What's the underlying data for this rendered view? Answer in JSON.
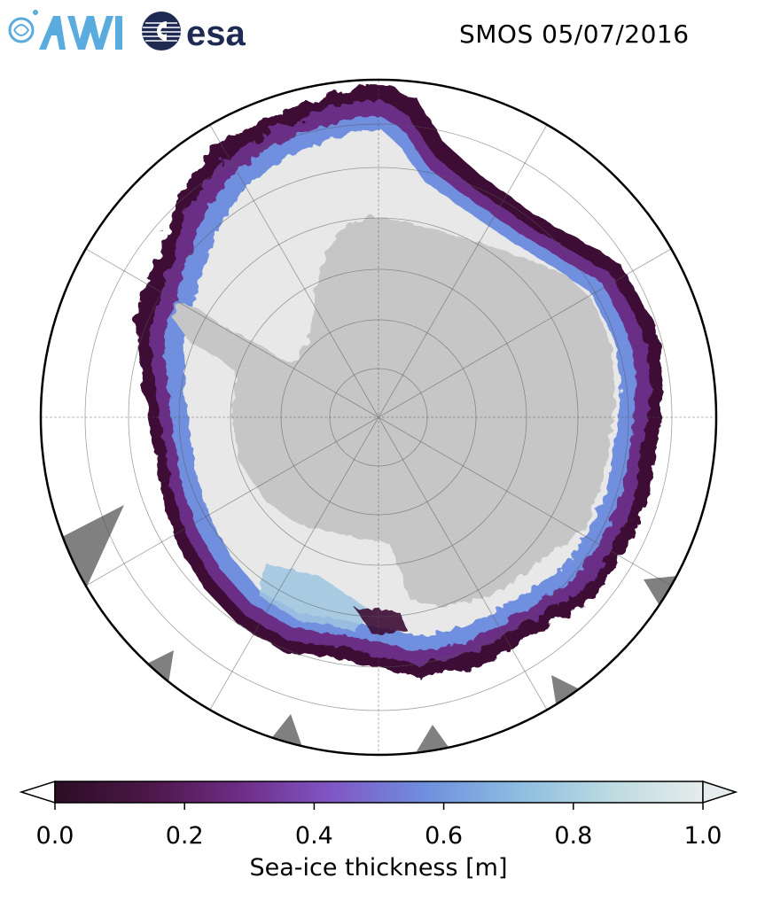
{
  "header": {
    "logo_left": "AWI",
    "logo_right": "esa",
    "title": "SMOS 05/07/2016"
  },
  "colors": {
    "land": "#c6c6c6",
    "missing": "#808080",
    "ocean": "#ffffff",
    "thin_ice": "#3d1036",
    "thick_ice": "#e8e8e8",
    "awi_blue": "#5aabde",
    "esa_navy": "#1e2a52"
  },
  "colorbar": {
    "label": "Sea-ice thickness [m]",
    "min": 0.0,
    "max": 1.0,
    "extend": "both",
    "ticks": [
      "0.0",
      "0.2",
      "0.4",
      "0.6",
      "0.8",
      "1.0"
    ],
    "stops": [
      "#2a0d23",
      "#4c1748",
      "#6e2d86",
      "#8057c6",
      "#6f8fde",
      "#8cbce0",
      "#bcdbe1",
      "#e6ecec"
    ]
  }
}
